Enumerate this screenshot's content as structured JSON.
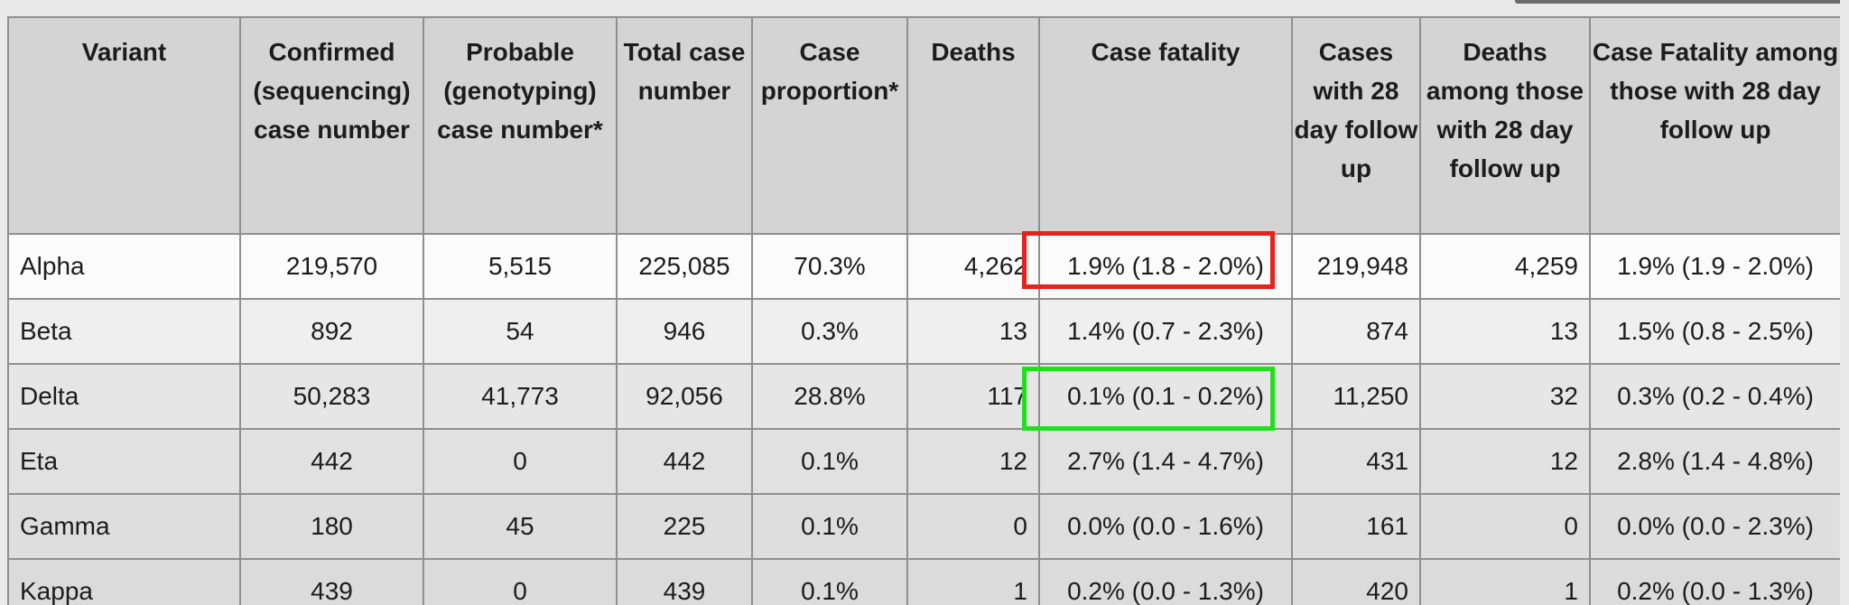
{
  "table": {
    "headers": [
      "Variant",
      "Confirmed (sequencing) case number",
      "Probable (genotyping) case number*",
      "Total case number",
      "Case proportion*",
      "Deaths",
      "Case fatality",
      "Cases with 28 day follow up",
      "Deaths among those with 28 day follow up",
      "Case Fatality among those with 28 day follow up"
    ],
    "rows": [
      [
        "Alpha",
        "219,570",
        "5,515",
        "225,085",
        "70.3%",
        "4,262",
        "1.9% (1.8 - 2.0%)",
        "219,948",
        "4,259",
        "1.9% (1.9 - 2.0%)"
      ],
      [
        "Beta",
        "892",
        "54",
        "946",
        "0.3%",
        "13",
        "1.4% (0.7 - 2.3%)",
        "874",
        "13",
        "1.5% (0.8 - 2.5%)"
      ],
      [
        "Delta",
        "50,283",
        "41,773",
        "92,056",
        "28.8%",
        "117",
        "0.1% (0.1 - 0.2%)",
        "11,250",
        "32",
        "0.3% (0.2 - 0.4%)"
      ],
      [
        "Eta",
        "442",
        "0",
        "442",
        "0.1%",
        "12",
        "2.7% (1.4 - 4.7%)",
        "431",
        "12",
        "2.8% (1.4 - 4.8%)"
      ],
      [
        "Gamma",
        "180",
        "45",
        "225",
        "0.1%",
        "0",
        "0.0% (0.0 - 1.6%)",
        "161",
        "0",
        "0.0% (0.0 - 2.3%)"
      ],
      [
        "Kappa",
        "439",
        "0",
        "439",
        "0.1%",
        "1",
        "0.2% (0.0 - 1.3%)",
        "420",
        "1",
        "0.2% (0.0 - 1.3%)"
      ]
    ]
  },
  "colors": {
    "red_highlight": "#e8211c",
    "green_highlight": "#20e01c",
    "header_background": "#d4d4d4",
    "grid_lines": "#8f8f8f"
  }
}
